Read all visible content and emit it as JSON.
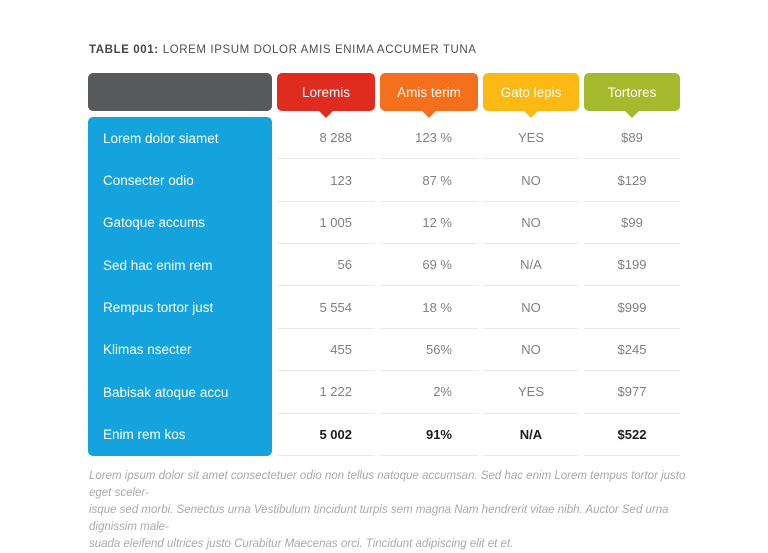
{
  "title": {
    "prefix": "TABLE 001:",
    "text": "LOREM IPSUM DOLOR AMIS ENIMA ACCUMER TUNA"
  },
  "colors": {
    "corner_header": "#58595b",
    "row_label_column": "#14a3dc",
    "separator": "#e9e9eb",
    "data_text": "#808184",
    "bold_text": "#1d1d1f"
  },
  "table": {
    "columns": [
      {
        "label": "Loremis",
        "color": "#e02b20"
      },
      {
        "label": "Amis terim",
        "color": "#f4701d"
      },
      {
        "label": "Gato lepis",
        "color": "#fcb813"
      },
      {
        "label": "Tortores",
        "color": "#a4b92b"
      }
    ],
    "rows": [
      {
        "label": "Lorem dolor siamet",
        "values": [
          "8 288",
          "123 %",
          "YES",
          "$89"
        ],
        "bold": false
      },
      {
        "label": "Consecter odio",
        "values": [
          "123",
          "87 %",
          "NO",
          "$129"
        ],
        "bold": false
      },
      {
        "label": "Gatoque accums",
        "values": [
          "1 005",
          "12 %",
          "NO",
          "$99"
        ],
        "bold": false
      },
      {
        "label": "Sed hac enim rem",
        "values": [
          "56",
          "69 %",
          "N/A",
          "$199"
        ],
        "bold": false
      },
      {
        "label": "Rempus tortor just",
        "values": [
          "5 554",
          "18 %",
          "NO",
          "$999"
        ],
        "bold": false
      },
      {
        "label": "Klimas nsecter",
        "values": [
          "455",
          "56%",
          "NO",
          "$245"
        ],
        "bold": false
      },
      {
        "label": "Babisak atoque accu",
        "values": [
          "1 222",
          "2%",
          "YES",
          "$977"
        ],
        "bold": false
      },
      {
        "label": "Enim rem kos",
        "values": [
          "5 002",
          "91%",
          "N/A",
          "$522"
        ],
        "bold": true
      }
    ]
  },
  "chart_data": {
    "type": "table",
    "title": "TABLE 001: LOREM IPSUM DOLOR AMIS ENIMA ACCUMER TUNA",
    "columns": [
      "",
      "Loremis",
      "Amis terim",
      "Gato lepis",
      "Tortores"
    ],
    "rows": [
      [
        "Lorem dolor siamet",
        "8 288",
        "123 %",
        "YES",
        "$89"
      ],
      [
        "Consecter odio",
        "123",
        "87 %",
        "NO",
        "$129"
      ],
      [
        "Gatoque accums",
        "1 005",
        "12 %",
        "NO",
        "$99"
      ],
      [
        "Sed hac enim rem",
        "56",
        "69 %",
        "N/A",
        "$199"
      ],
      [
        "Rempus tortor just",
        "5 554",
        "18 %",
        "NO",
        "$999"
      ],
      [
        "Klimas nsecter",
        "455",
        "56%",
        "NO",
        "$245"
      ],
      [
        "Babisak atoque accu",
        "1 222",
        "2%",
        "YES",
        "$977"
      ],
      [
        "Enim rem kos",
        "5 002",
        "91%",
        "N/A",
        "$522"
      ]
    ]
  },
  "footer": {
    "lines": [
      "Lorem ipsum dolor sit amet consectetuer odio non tellus natoque accumsan. Sed hac enim Lorem tempus tortor justo eget sceler-",
      "isque sed morbi. Senectus urna Vestibulum tincidunt turpis sem magna Nam hendrerit vitae nibh. Auctor Sed urna dignissim male-",
      "suada eleifend ultrices justo Curabitur Maecenas orci. Tincidunt adipiscing elit et et."
    ]
  }
}
